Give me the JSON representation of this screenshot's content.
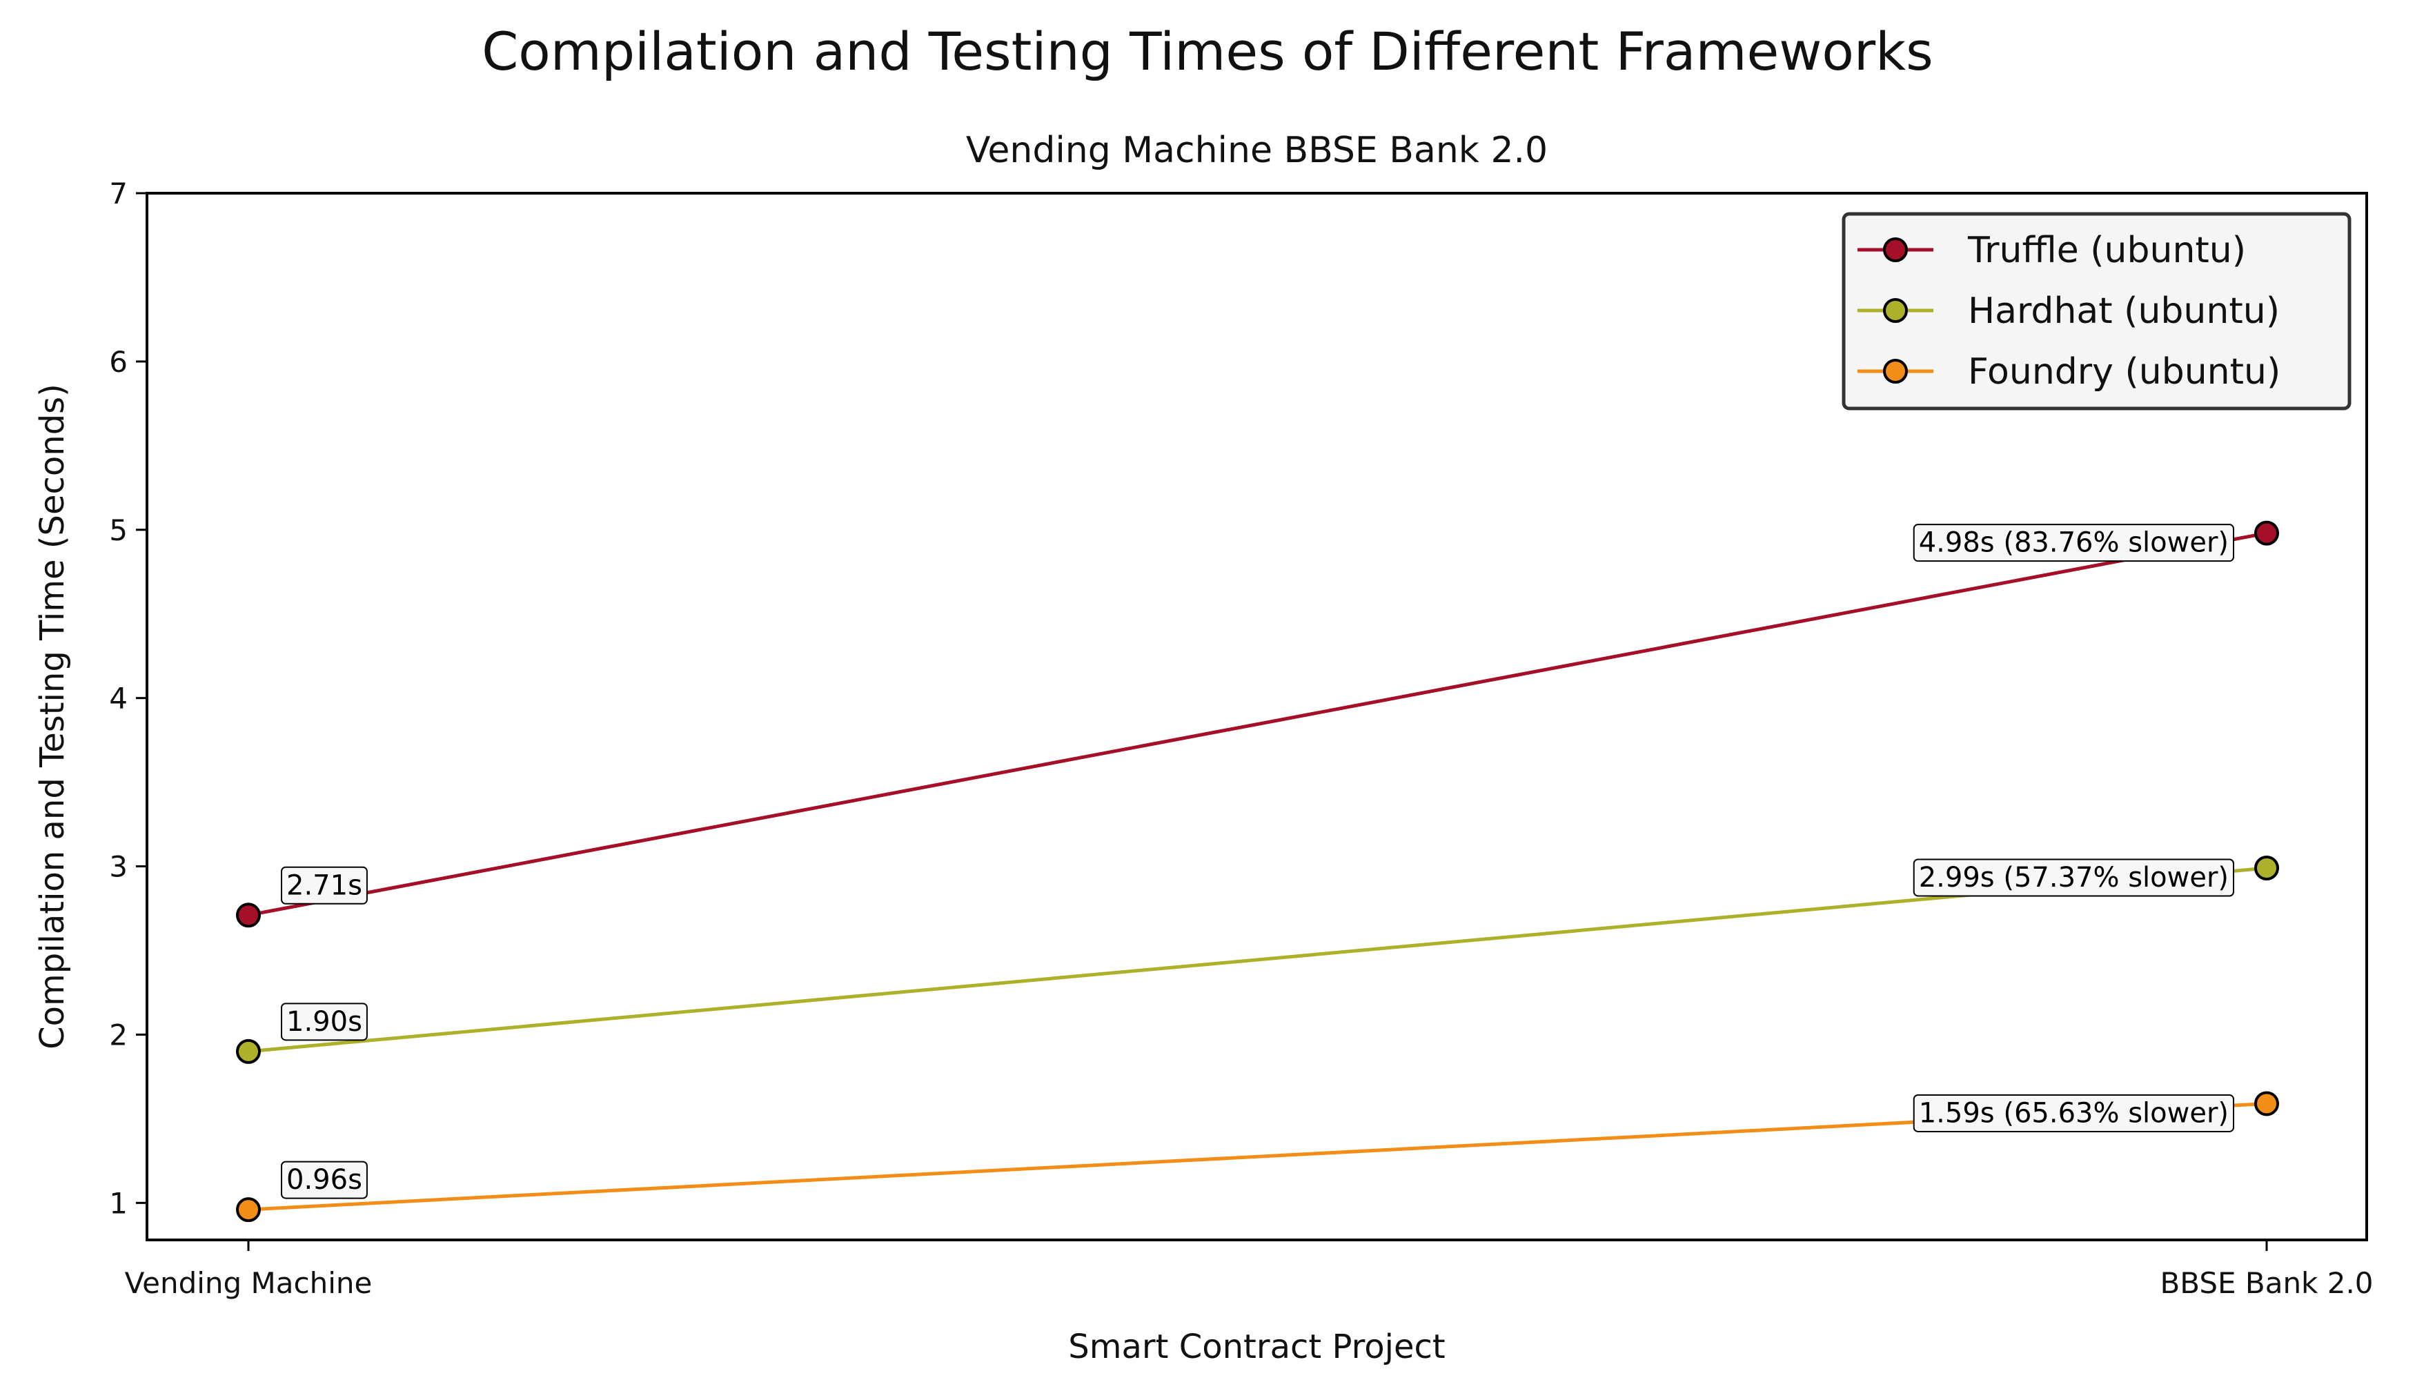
{
  "title": "Compilation and Testing Times of Different Frameworks",
  "subtitle": "Vending Machine BBSE Bank 2.0",
  "chart_data": {
    "type": "line",
    "title": "Compilation and Testing Times of Different Frameworks",
    "subtitle": "Vending Machine BBSE Bank 2.0",
    "xlabel": "Smart Contract Project",
    "ylabel": "Compilation and Testing Time (Seconds)",
    "categories": [
      "Vending Machine",
      "BBSE Bank 2.0"
    ],
    "ylim": [
      0.78,
      7
    ],
    "yticks": [
      "1",
      "2",
      "3",
      "4",
      "5",
      "6",
      "7"
    ],
    "grid": false,
    "legend_position": "top-right",
    "series": [
      {
        "name": "Truffle (ubuntu)",
        "color": "#a50f27",
        "values": [
          2.71,
          4.98
        ],
        "labels": [
          "2.71s",
          "4.98s (83.76% slower)"
        ]
      },
      {
        "name": "Hardhat (ubuntu)",
        "color": "#adb12a",
        "values": [
          1.9,
          2.99
        ],
        "labels": [
          "1.90s",
          "2.99s (57.37% slower)"
        ]
      },
      {
        "name": "Foundry (ubuntu)",
        "color": "#f28d18",
        "values": [
          0.96,
          1.59
        ],
        "labels": [
          "0.96s",
          "1.59s (65.63% slower)"
        ]
      }
    ]
  }
}
